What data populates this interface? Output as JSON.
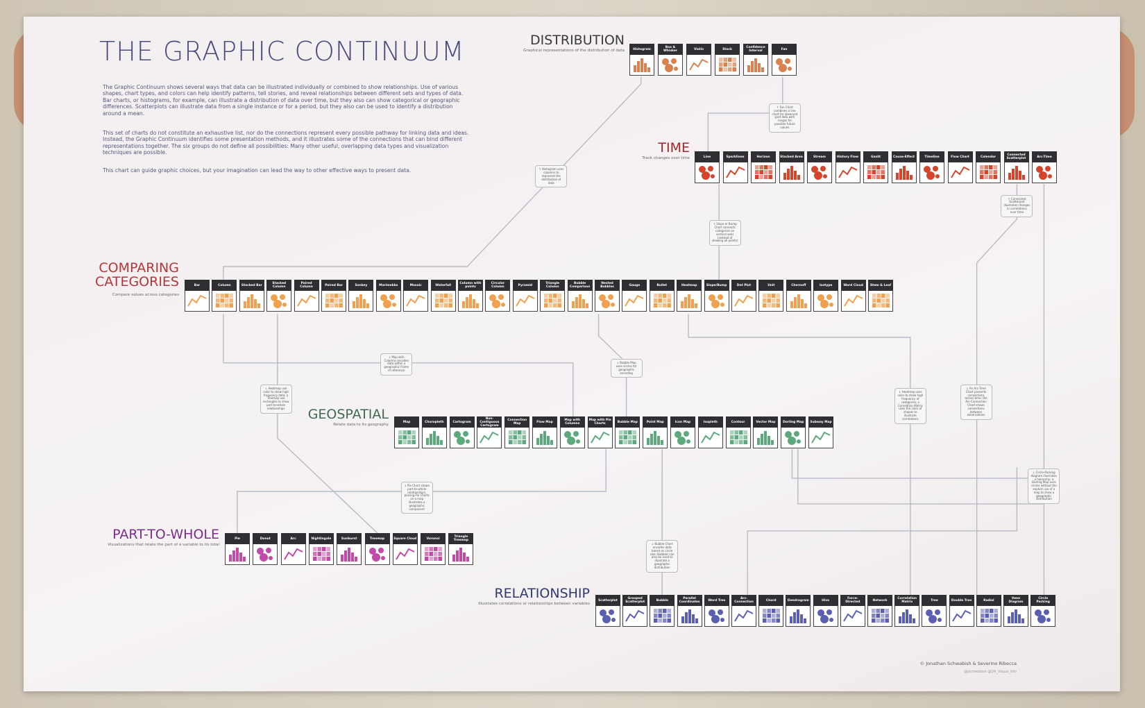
{
  "header": {
    "title": "THE GRAPHIC CONTINUUM",
    "paragraphs": [
      "The Graphic Continuum shows several ways that data can be illustrated individually or combined to show relationships. Use of various shapes, chart types, and colors can help identify patterns, tell stories, and reveal relationships between different sets and types of data. Bar charts, or histograms, for example, can illustrate a distribution of data over time, but they also can show categorical or geographic differences. Scatterplots can illustrate data from a single instance or for a period, but they also can be used to identify a distribution around a mean.",
      "This set of charts do not constitute an exhaustive list, nor do the connections represent every possible pathway for linking data and ideas. Instead, the Graphic Continuum identifies some presentation methods, and it illustrates some of the connections that can bind different representations together. The six groups do not define all possibilities: Many other useful, overlapping data types and visualization techniques are possible.",
      "This chart can guide graphic choices, but your imagination can lead the way to other effective ways to present data."
    ]
  },
  "groups": [
    {
      "title": "DISTRIBUTION",
      "subtitle": "Graphical representations of the distribution of data",
      "color": "#3a3a3a",
      "icon_color": "#d9824f",
      "tiles": [
        "Histogram",
        "Box & Whisker",
        "Violin",
        "Stock",
        "Confidence Interval",
        "Fan"
      ]
    },
    {
      "title": "TIME",
      "subtitle": "Track changes over time",
      "color": "#a3232b",
      "icon_color": "#d5452c",
      "tiles": [
        "Line",
        "Sparklines",
        "Horizon",
        "Stacked Area",
        "Stream",
        "History Flow",
        "Gantt",
        "Cause-Effect",
        "Timeline",
        "Flow Chart",
        "Calendar",
        "Connected Scatterplot",
        "Arc-Time"
      ]
    },
    {
      "title": "COMPARING CATEGORIES",
      "subtitle": "Compare values across categories",
      "color": "#b3363a",
      "icon_color": "#f0a04e",
      "tiles": [
        "Bar",
        "Column",
        "Stacked Bar",
        "Stacked Column",
        "Paired Column",
        "Paired Bar",
        "Sankey",
        "Marimekko",
        "Mosaic",
        "Waterfall",
        "Column with points",
        "Circular Column",
        "Pyramid",
        "Triangle Column",
        "Bubble Comparison",
        "Nested Bubbles",
        "Gauge",
        "Bullet",
        "Heatmap",
        "Slope/Bump",
        "Dot Plot",
        "Unit",
        "Chernoff",
        "Isotype",
        "Word Cloud",
        "Stem & Leaf"
      ]
    },
    {
      "title": "GEOSPATIAL",
      "subtitle": "Relate data to its geography",
      "color": "#3f6b50",
      "icon_color": "#5caa7c",
      "tiles": [
        "Map",
        "Choropleth",
        "Cartogram",
        "Non-Contiguous Cartogram",
        "Connection Map",
        "Flow Map",
        "Map with Columns",
        "Map with Pie Charts",
        "Bubble Map",
        "Point Map",
        "Icon Map",
        "Isopleth",
        "Contour",
        "Vector Map",
        "Dorling Map",
        "Subway Map"
      ]
    },
    {
      "title": "PART-TO-WHOLE",
      "subtitle": "Visualizations that relate the part of a variable to its total",
      "color": "#7b2d8c",
      "icon_color": "#c24aa9",
      "tiles": [
        "Pie",
        "Donut",
        "Arc",
        "Nightingale",
        "Sunburst",
        "Treemap",
        "Square Cloud",
        "Voronoi",
        "Triangle Treemap"
      ]
    },
    {
      "title": "RELATIONSHIP",
      "subtitle": "Illustrates correlations or relationships between variables",
      "color": "#2f3b70",
      "icon_color": "#5b5fb2",
      "tiles": [
        "Scatterplot",
        "Grouped Scatterplot",
        "Bubble",
        "Parallel Coordinates",
        "Word Tree",
        "Arc-Connection",
        "Chord",
        "Dendrogram",
        "Hive",
        "Force-Directed",
        "Network",
        "Correlation Matrix",
        "Tree",
        "Double Tree",
        "Radial",
        "Venn Diagram",
        "Circle Packing"
      ]
    }
  ],
  "notes": [
    "↑ Histogram uses columns to represent the distribution of data",
    "↑ Fan Chart combines a line chart for observed past data with ranges for possible future values",
    "↑ Slope or Bump Chart connects categories on vertical axes (instead of showing all points)",
    "↑ Connected Scatterplot illustrates changes in correlations over time",
    "↓ Map with Columns encodes data within a geographic frame of reference",
    "↓ Bubble Map uses circles for geographic encoding",
    "↓ Heatmap use color to show high frequency data; a Treemap use rectangles to show part-to-whole relationships",
    "↓ Heatmap uses color to show high frequency of categories; a Correlation Matrix uses the color of shapes to illustrate correlations",
    "↓ An Arc-Time Chart presents connections across time; the Arc-Connection Chart shows connections between observations",
    "↓ Pie Chart shows part-to-whole relationships; placing Pie Charts on a map illustrates a geographic component",
    "↓ Circle-Packing diagram illustrates a hierarchy; a Dorling Map uses circles without the explicit use of a map to show a geographic distribution",
    "↓ Bubble Chart encodes data based on circle size; Bubbles can also be used to illustrate a geographic distribution"
  ],
  "credits": [
    "© Jonathan Schwabish & Severino Ribecca",
    "@jschwabish @DR_Visual_Info"
  ]
}
